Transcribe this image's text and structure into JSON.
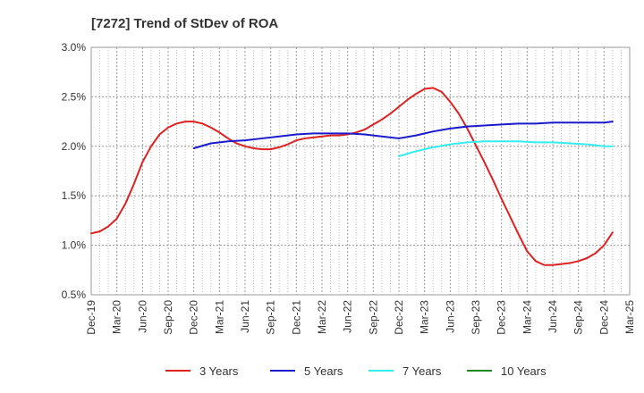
{
  "chart_data": {
    "type": "line",
    "title": "[7272]  Trend of StDev of ROA",
    "xlabel": "",
    "ylabel": "",
    "ylim": [
      0.5,
      3.0
    ],
    "y_ticks": [
      "0.5%",
      "1.0%",
      "1.5%",
      "2.0%",
      "2.5%",
      "3.0%"
    ],
    "x_ticks": [
      "Dec-19",
      "Mar-20",
      "Jun-20",
      "Sep-20",
      "Dec-20",
      "Mar-21",
      "Jun-21",
      "Sep-21",
      "Dec-21",
      "Mar-22",
      "Jun-22",
      "Sep-22",
      "Dec-22",
      "Mar-23",
      "Jun-23",
      "Sep-23",
      "Dec-23",
      "Mar-24",
      "Jun-24",
      "Sep-24",
      "Dec-24",
      "Mar-25"
    ],
    "grid": true,
    "legend_position": "bottom",
    "series": [
      {
        "name": "3 Years",
        "color": "#dd2222",
        "points": [
          [
            "Dec-19",
            1.12
          ],
          [
            "Jan-20",
            1.14
          ],
          [
            "Feb-20",
            1.19
          ],
          [
            "Mar-20",
            1.27
          ],
          [
            "Apr-20",
            1.42
          ],
          [
            "May-20",
            1.62
          ],
          [
            "Jun-20",
            1.84
          ],
          [
            "Jul-20",
            2.0
          ],
          [
            "Aug-20",
            2.12
          ],
          [
            "Sep-20",
            2.19
          ],
          [
            "Oct-20",
            2.23
          ],
          [
            "Nov-20",
            2.25
          ],
          [
            "Dec-20",
            2.25
          ],
          [
            "Jan-21",
            2.23
          ],
          [
            "Feb-21",
            2.19
          ],
          [
            "Mar-21",
            2.14
          ],
          [
            "Apr-21",
            2.08
          ],
          [
            "May-21",
            2.03
          ],
          [
            "Jun-21",
            2.0
          ],
          [
            "Jul-21",
            1.98
          ],
          [
            "Aug-21",
            1.97
          ],
          [
            "Sep-21",
            1.97
          ],
          [
            "Oct-21",
            1.99
          ],
          [
            "Nov-21",
            2.02
          ],
          [
            "Dec-21",
            2.06
          ],
          [
            "Jan-22",
            2.08
          ],
          [
            "Feb-22",
            2.09
          ],
          [
            "Mar-22",
            2.1
          ],
          [
            "Apr-22",
            2.11
          ],
          [
            "May-22",
            2.11
          ],
          [
            "Jun-22",
            2.12
          ],
          [
            "Jul-22",
            2.14
          ],
          [
            "Aug-22",
            2.17
          ],
          [
            "Sep-22",
            2.22
          ],
          [
            "Oct-22",
            2.27
          ],
          [
            "Nov-22",
            2.33
          ],
          [
            "Dec-22",
            2.4
          ],
          [
            "Jan-23",
            2.47
          ],
          [
            "Feb-23",
            2.53
          ],
          [
            "Mar-23",
            2.58
          ],
          [
            "Apr-23",
            2.59
          ],
          [
            "May-23",
            2.55
          ],
          [
            "Jun-23",
            2.45
          ],
          [
            "Jul-23",
            2.33
          ],
          [
            "Aug-23",
            2.18
          ],
          [
            "Sep-23",
            2.01
          ],
          [
            "Oct-23",
            1.84
          ],
          [
            "Nov-23",
            1.66
          ],
          [
            "Dec-23",
            1.47
          ],
          [
            "Jan-24",
            1.29
          ],
          [
            "Feb-24",
            1.11
          ],
          [
            "Mar-24",
            0.94
          ],
          [
            "Apr-24",
            0.84
          ],
          [
            "May-24",
            0.8
          ],
          [
            "Jun-24",
            0.8
          ],
          [
            "Jul-24",
            0.81
          ],
          [
            "Aug-24",
            0.82
          ],
          [
            "Sep-24",
            0.84
          ],
          [
            "Oct-24",
            0.87
          ],
          [
            "Nov-24",
            0.92
          ],
          [
            "Dec-24",
            1.0
          ],
          [
            "Jan-25",
            1.13
          ]
        ]
      },
      {
        "name": "5 Years",
        "color": "#1a1acc",
        "points": [
          [
            "Dec-20",
            1.98
          ],
          [
            "Feb-21",
            2.03
          ],
          [
            "Apr-21",
            2.05
          ],
          [
            "Jun-21",
            2.06
          ],
          [
            "Aug-21",
            2.08
          ],
          [
            "Oct-21",
            2.1
          ],
          [
            "Dec-21",
            2.12
          ],
          [
            "Feb-22",
            2.13
          ],
          [
            "Apr-22",
            2.13
          ],
          [
            "Jun-22",
            2.13
          ],
          [
            "Aug-22",
            2.12
          ],
          [
            "Oct-22",
            2.1
          ],
          [
            "Dec-22",
            2.08
          ],
          [
            "Feb-23",
            2.11
          ],
          [
            "Apr-23",
            2.15
          ],
          [
            "Jun-23",
            2.18
          ],
          [
            "Aug-23",
            2.2
          ],
          [
            "Oct-23",
            2.21
          ],
          [
            "Dec-23",
            2.22
          ],
          [
            "Feb-24",
            2.23
          ],
          [
            "Apr-24",
            2.23
          ],
          [
            "Jun-24",
            2.24
          ],
          [
            "Aug-24",
            2.24
          ],
          [
            "Oct-24",
            2.24
          ],
          [
            "Dec-24",
            2.24
          ],
          [
            "Jan-25",
            2.25
          ]
        ]
      },
      {
        "name": "7 Years",
        "color": "#33eeee",
        "points": [
          [
            "Dec-22",
            1.9
          ],
          [
            "Feb-23",
            1.95
          ],
          [
            "Apr-23",
            1.99
          ],
          [
            "Jun-23",
            2.02
          ],
          [
            "Aug-23",
            2.04
          ],
          [
            "Oct-23",
            2.05
          ],
          [
            "Dec-23",
            2.05
          ],
          [
            "Feb-24",
            2.05
          ],
          [
            "Apr-24",
            2.04
          ],
          [
            "Jun-24",
            2.04
          ],
          [
            "Aug-24",
            2.03
          ],
          [
            "Oct-24",
            2.02
          ],
          [
            "Dec-24",
            2.0
          ],
          [
            "Jan-25",
            2.0
          ]
        ]
      },
      {
        "name": "10 Years",
        "color": "#228822",
        "points": []
      }
    ]
  }
}
